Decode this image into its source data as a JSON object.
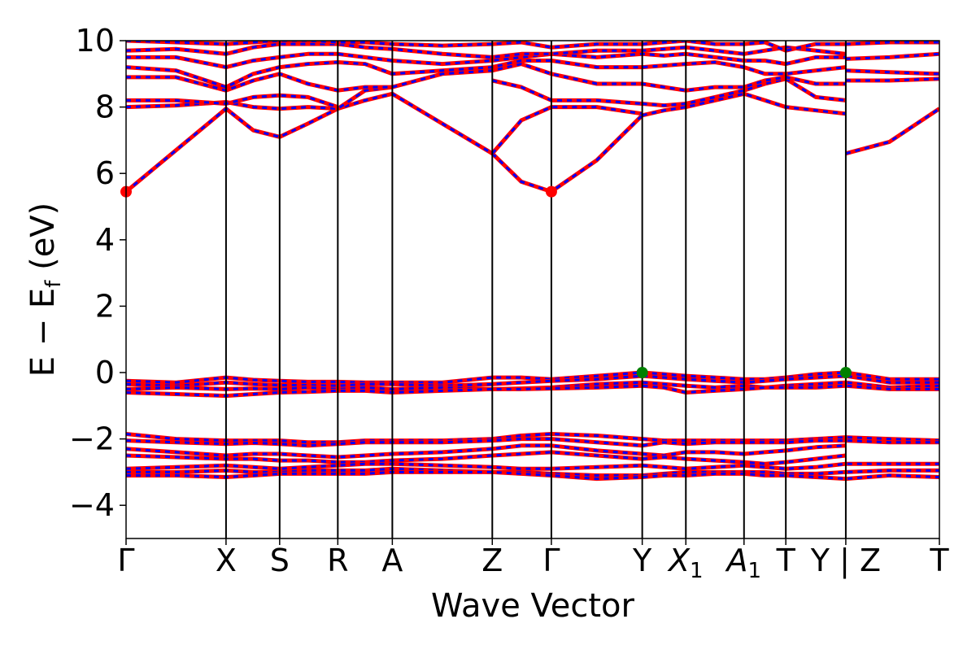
{
  "chart_data": {
    "type": "line",
    "title": "",
    "xlabel": "Wave Vector",
    "ylabel_main": "E − E",
    "ylabel_sub": "f",
    "ylabel_unit": " (eV)",
    "ylim": [
      -5,
      10
    ],
    "yticks": [
      -4,
      -2,
      0,
      2,
      4,
      6,
      8,
      10
    ],
    "ytick_labels": [
      "−4",
      "−2",
      "0",
      "2",
      "4",
      "6",
      "8",
      "10"
    ],
    "xlim": [
      0,
      8.095
    ],
    "kpoints": [
      {
        "x": 0.0,
        "label": "Γ",
        "sub": ""
      },
      {
        "x": 1.1,
        "label": "X",
        "sub": ""
      },
      {
        "x": 1.69,
        "label": "S",
        "sub": ""
      },
      {
        "x": 2.33,
        "label": "R",
        "sub": ""
      },
      {
        "x": 2.93,
        "label": "A",
        "sub": ""
      },
      {
        "x": 4.03,
        "label": "Z",
        "sub": ""
      },
      {
        "x": 4.68,
        "label": "Γ",
        "sub": ""
      },
      {
        "x": 5.68,
        "label": "Y",
        "sub": ""
      },
      {
        "x": 6.16,
        "label": "X",
        "sub": "1",
        "italic": true
      },
      {
        "x": 6.8,
        "label": "A",
        "sub": "1",
        "italic": true
      },
      {
        "x": 7.26,
        "label": "T",
        "sub": ""
      },
      {
        "x": 7.92,
        "label": "Y | Z",
        "sub": ""
      },
      {
        "x": 8.95,
        "label": "T",
        "sub": ""
      }
    ],
    "break_x": 7.92,
    "grid": false,
    "legend": "none",
    "colors": {
      "series_a": "#ff0000",
      "series_b": "#0000ff",
      "cbm": "#ff0000",
      "vbm": "#008000"
    },
    "markers": [
      {
        "name": "cbm-marker",
        "x": 0.0,
        "y": 5.45,
        "color": "#ff0000"
      },
      {
        "name": "cbm-marker",
        "x": 4.68,
        "y": 5.45,
        "color": "#ff0000"
      },
      {
        "name": "vbm-marker",
        "x": 5.68,
        "y": 0.0,
        "color": "#008000"
      },
      {
        "name": "vbm-marker",
        "x": 7.92,
        "y": 0.0,
        "color": "#008000"
      }
    ],
    "series": [
      {
        "x": [
          0,
          0.55,
          1.1,
          1.4,
          1.69,
          2.0,
          2.33,
          2.63,
          2.93,
          3.48,
          4.03
        ],
        "y": [
          5.45,
          6.7,
          7.95,
          7.3,
          7.1,
          7.5,
          7.95,
          8.2,
          8.4,
          7.5,
          6.6
        ]
      },
      {
        "x": [
          4.03,
          4.35,
          4.68,
          5.18,
          5.68
        ],
        "y": [
          6.6,
          5.75,
          5.45,
          6.4,
          7.75
        ]
      },
      {
        "x": [
          5.68,
          5.92,
          6.16,
          6.48,
          6.8,
          7.03,
          7.26,
          7.59,
          7.92
        ],
        "y": [
          7.75,
          7.9,
          8.0,
          8.2,
          8.4,
          8.2,
          8.0,
          7.9,
          7.8
        ]
      },
      {
        "x": [
          7.92,
          8.4,
          8.95
        ],
        "y": [
          6.6,
          6.95,
          7.95
        ]
      },
      {
        "x": [
          0,
          0.55,
          1.1,
          1.4,
          1.69,
          2.0,
          2.33,
          2.63,
          2.93
        ],
        "y": [
          8.0,
          8.05,
          8.15,
          8.0,
          7.95,
          8.0,
          7.95,
          8.5,
          8.6
        ]
      },
      {
        "x": [
          0,
          0.55,
          1.1,
          1.4,
          1.69,
          2.0,
          2.33
        ],
        "y": [
          8.2,
          8.2,
          8.1,
          8.3,
          8.35,
          8.3,
          8.0
        ]
      },
      {
        "x": [
          4.03,
          4.35,
          4.68,
          5.18,
          5.68
        ],
        "y": [
          6.6,
          7.6,
          8.0,
          8.0,
          7.8
        ]
      },
      {
        "x": [
          4.03,
          4.35,
          4.68,
          5.18,
          5.68
        ],
        "y": [
          8.8,
          8.6,
          8.2,
          8.2,
          8.1
        ]
      },
      {
        "x": [
          5.68,
          5.92,
          6.16,
          6.48,
          6.8,
          7.03,
          7.26,
          7.59,
          7.92
        ],
        "y": [
          8.1,
          8.05,
          8.1,
          8.3,
          8.5,
          8.7,
          8.85,
          8.3,
          8.2
        ]
      },
      {
        "x": [
          0,
          0.55,
          1.1,
          1.4,
          1.69,
          2.0,
          2.33,
          2.63,
          2.93,
          3.48,
          4.03,
          4.35,
          4.68,
          5.18,
          5.68,
          5.92,
          6.16,
          6.48,
          6.8,
          7.03,
          7.26,
          7.59,
          7.92
        ],
        "y": [
          8.9,
          8.9,
          8.5,
          8.8,
          9.0,
          8.7,
          8.5,
          8.6,
          8.6,
          9.0,
          9.1,
          9.3,
          9.0,
          8.7,
          8.7,
          8.6,
          8.5,
          8.6,
          8.6,
          8.8,
          8.9,
          8.7,
          8.7
        ]
      },
      {
        "x": [
          7.92,
          8.4,
          8.95
        ],
        "y": [
          8.8,
          8.8,
          8.85
        ]
      },
      {
        "x": [
          0,
          0.55,
          1.1,
          1.4,
          1.69,
          2.0,
          2.33,
          2.63,
          2.93,
          3.48,
          4.03,
          4.35,
          4.68,
          5.18,
          5.68,
          5.92,
          6.16,
          6.48,
          6.8,
          7.03,
          7.26,
          7.59,
          7.92
        ],
        "y": [
          9.2,
          9.1,
          8.6,
          9.0,
          9.2,
          9.3,
          9.35,
          9.3,
          9.0,
          9.1,
          9.2,
          9.4,
          9.4,
          9.2,
          9.2,
          9.25,
          9.3,
          9.35,
          9.2,
          9.0,
          9.0,
          9.1,
          9.2
        ]
      },
      {
        "x": [
          0,
          0.55,
          1.1,
          1.4,
          1.69,
          2.0,
          2.33,
          2.63,
          2.93,
          3.48,
          4.03,
          4.35,
          4.68,
          5.18,
          5.68,
          5.92,
          6.16,
          6.48,
          6.8,
          7.03,
          7.26,
          7.59,
          7.92
        ],
        "y": [
          9.5,
          9.5,
          9.2,
          9.4,
          9.5,
          9.6,
          9.6,
          9.5,
          9.4,
          9.3,
          9.4,
          9.5,
          9.6,
          9.5,
          9.6,
          9.55,
          9.6,
          9.5,
          9.4,
          9.4,
          9.3,
          9.5,
          9.5
        ]
      },
      {
        "x": [
          0,
          0.55,
          1.1,
          1.4,
          1.69,
          2.0,
          2.33,
          2.63,
          2.93,
          3.48,
          4.03,
          4.35,
          4.68,
          5.18,
          5.68,
          5.92,
          6.16,
          6.48,
          6.8,
          7.03,
          7.26,
          7.59,
          7.92
        ],
        "y": [
          9.7,
          9.75,
          9.6,
          9.8,
          9.9,
          9.9,
          9.9,
          9.8,
          9.75,
          9.6,
          9.5,
          9.6,
          9.6,
          9.7,
          9.7,
          9.75,
          9.8,
          9.7,
          9.6,
          9.7,
          9.8,
          9.7,
          9.6
        ]
      },
      {
        "x": [
          0,
          0.55,
          1.1,
          1.4,
          1.69,
          2.0,
          2.33,
          2.63,
          2.93,
          3.48,
          4.03,
          4.35,
          4.68,
          5.18,
          5.68,
          5.92,
          6.16,
          6.48,
          6.8,
          7.03,
          7.26,
          7.59,
          7.92
        ],
        "y": [
          10.0,
          9.95,
          9.9,
          9.95,
          10.0,
          10.0,
          9.95,
          9.95,
          9.9,
          9.85,
          9.9,
          9.95,
          9.8,
          9.9,
          9.9,
          9.95,
          10.0,
          9.9,
          9.9,
          9.95,
          9.7,
          9.9,
          9.9
        ]
      },
      {
        "x": [
          7.92,
          8.4,
          8.95
        ],
        "y": [
          9.1,
          9.05,
          9.0
        ]
      },
      {
        "x": [
          7.92,
          8.4,
          8.95
        ],
        "y": [
          9.45,
          9.5,
          9.6
        ]
      },
      {
        "x": [
          7.92,
          8.4,
          8.95
        ],
        "y": [
          9.9,
          9.95,
          9.95
        ]
      },
      {
        "x": [
          0,
          0.55,
          1.1,
          1.4,
          1.69,
          2.0,
          2.33,
          2.63,
          2.93,
          3.48,
          4.03,
          4.35,
          4.68,
          5.18,
          5.68,
          5.92,
          6.16,
          6.48,
          6.8,
          7.03,
          7.26,
          7.59,
          7.92,
          8.4,
          8.95
        ],
        "y": [
          -0.25,
          -0.3,
          -0.15,
          -0.22,
          -0.25,
          -0.28,
          -0.28,
          -0.3,
          -0.3,
          -0.3,
          -0.15,
          -0.15,
          -0.2,
          -0.1,
          0.0,
          -0.05,
          -0.1,
          -0.15,
          -0.2,
          -0.2,
          -0.15,
          -0.05,
          0.0,
          -0.2,
          -0.2
        ]
      },
      {
        "x": [
          0,
          0.55,
          1.1,
          1.4,
          1.69,
          2.0,
          2.33,
          2.63,
          2.93,
          3.48,
          4.03,
          4.35,
          4.68,
          5.18,
          5.68,
          5.92,
          6.16,
          6.48,
          6.8,
          7.03,
          7.26,
          7.59,
          7.92,
          8.4,
          8.95
        ],
        "y": [
          -0.35,
          -0.4,
          -0.3,
          -0.35,
          -0.38,
          -0.38,
          -0.4,
          -0.35,
          -0.35,
          -0.4,
          -0.35,
          -0.3,
          -0.25,
          -0.2,
          -0.1,
          -0.15,
          -0.2,
          -0.25,
          -0.3,
          -0.25,
          -0.2,
          -0.15,
          -0.1,
          -0.3,
          -0.3
        ]
      },
      {
        "x": [
          0,
          0.55,
          1.1,
          1.4,
          1.69,
          2.0,
          2.33,
          2.63,
          2.93,
          3.48,
          4.03,
          4.35,
          4.68,
          5.18,
          5.68,
          5.92,
          6.16,
          6.48,
          6.8,
          7.03,
          7.26,
          7.59,
          7.92,
          8.4,
          8.95
        ],
        "y": [
          -0.5,
          -0.45,
          -0.5,
          -0.48,
          -0.5,
          -0.45,
          -0.5,
          -0.45,
          -0.5,
          -0.45,
          -0.5,
          -0.48,
          -0.45,
          -0.35,
          -0.3,
          -0.35,
          -0.4,
          -0.45,
          -0.4,
          -0.45,
          -0.4,
          -0.35,
          -0.3,
          -0.45,
          -0.4
        ]
      },
      {
        "x": [
          0,
          0.55,
          1.1,
          1.4,
          1.69,
          2.0,
          2.33,
          2.63,
          2.93,
          3.48,
          4.03,
          4.35,
          4.68,
          5.18,
          5.68,
          5.92,
          6.16,
          6.48,
          6.8,
          7.03,
          7.26,
          7.59,
          7.92,
          8.4,
          8.95
        ],
        "y": [
          -0.6,
          -0.65,
          -0.7,
          -0.65,
          -0.6,
          -0.58,
          -0.55,
          -0.55,
          -0.6,
          -0.55,
          -0.5,
          -0.5,
          -0.48,
          -0.45,
          -0.4,
          -0.45,
          -0.6,
          -0.55,
          -0.5,
          -0.45,
          -0.45,
          -0.45,
          -0.4,
          -0.5,
          -0.5
        ]
      },
      {
        "x": [
          0,
          0.55,
          1.1,
          1.4,
          1.69,
          2.0,
          2.33,
          2.63,
          2.93,
          3.48,
          4.03,
          4.35,
          4.68,
          5.18,
          5.68,
          5.92,
          6.16,
          6.48,
          6.8,
          7.03,
          7.26,
          7.59,
          7.92,
          8.4,
          8.95
        ],
        "y": [
          -1.85,
          -2.0,
          -2.05,
          -2.05,
          -2.05,
          -2.1,
          -2.1,
          -2.05,
          -2.05,
          -2.05,
          -2.0,
          -1.9,
          -1.85,
          -1.9,
          -2.0,
          -2.05,
          -2.05,
          -2.05,
          -2.05,
          -2.05,
          -2.05,
          -2.0,
          -1.95,
          -2.0,
          -2.05
        ]
      },
      {
        "x": [
          0,
          0.55,
          1.1,
          1.4,
          1.69,
          2.0,
          2.33,
          2.63,
          2.93,
          3.48,
          4.03,
          4.35,
          4.68,
          5.18,
          5.68,
          5.92,
          6.16,
          6.48,
          6.8,
          7.03,
          7.26,
          7.59,
          7.92,
          8.4,
          8.95
        ],
        "y": [
          -2.05,
          -2.1,
          -2.15,
          -2.12,
          -2.15,
          -2.2,
          -2.15,
          -2.1,
          -2.1,
          -2.1,
          -2.05,
          -2.0,
          -2.0,
          -2.1,
          -2.2,
          -2.1,
          -2.15,
          -2.1,
          -2.1,
          -2.1,
          -2.1,
          -2.05,
          -2.05,
          -2.1,
          -2.1
        ]
      },
      {
        "x": [
          0,
          0.55,
          1.1,
          1.4,
          1.69,
          2.0,
          2.33,
          2.63,
          2.93,
          3.48,
          4.03,
          4.35,
          4.68,
          5.18,
          5.68,
          5.92,
          6.16,
          6.48,
          6.8,
          7.03,
          7.26,
          7.59,
          7.92
        ],
        "y": [
          -2.3,
          -2.4,
          -2.5,
          -2.45,
          -2.45,
          -2.5,
          -2.55,
          -2.5,
          -2.45,
          -2.4,
          -2.3,
          -2.2,
          -2.2,
          -2.35,
          -2.45,
          -2.5,
          -2.4,
          -2.4,
          -2.45,
          -2.4,
          -2.35,
          -2.25,
          -2.2
        ]
      },
      {
        "x": [
          0,
          0.55,
          1.1,
          1.4,
          1.69,
          2.0,
          2.33,
          2.63,
          2.93,
          3.48,
          4.03,
          4.35,
          4.68,
          5.18,
          5.68,
          5.92,
          6.16,
          6.48,
          6.8,
          7.03,
          7.26,
          7.59,
          7.92
        ],
        "y": [
          -2.5,
          -2.55,
          -2.6,
          -2.6,
          -2.65,
          -2.65,
          -2.7,
          -2.7,
          -2.65,
          -2.6,
          -2.5,
          -2.45,
          -2.4,
          -2.5,
          -2.6,
          -2.55,
          -2.6,
          -2.65,
          -2.7,
          -2.75,
          -2.7,
          -2.6,
          -2.5
        ]
      },
      {
        "x": [
          0,
          0.55,
          1.1,
          1.4,
          1.69,
          2.0,
          2.33,
          2.63,
          2.93,
          3.48,
          4.03,
          4.35,
          4.68,
          5.18,
          5.68,
          5.92,
          6.16,
          6.48,
          6.8,
          7.03,
          7.26,
          7.59,
          7.92,
          8.4,
          8.95
        ],
        "y": [
          -2.9,
          -2.85,
          -2.8,
          -2.85,
          -2.9,
          -2.85,
          -2.8,
          -2.75,
          -2.75,
          -2.8,
          -2.85,
          -2.9,
          -2.9,
          -2.85,
          -2.8,
          -2.85,
          -2.9,
          -2.85,
          -2.8,
          -2.85,
          -2.9,
          -2.85,
          -2.75,
          -2.75,
          -2.75
        ]
      },
      {
        "x": [
          0,
          0.55,
          1.1,
          1.4,
          1.69,
          2.0,
          2.33,
          2.63,
          2.93,
          3.48,
          4.03,
          4.35,
          4.68,
          5.18,
          5.68,
          5.92,
          6.16,
          6.48,
          6.8,
          7.03,
          7.26,
          7.59,
          7.92,
          8.4,
          8.95
        ],
        "y": [
          -3.0,
          -3.0,
          -2.95,
          -3.0,
          -3.0,
          -2.95,
          -2.95,
          -2.95,
          -2.9,
          -2.95,
          -3.0,
          -3.0,
          -3.05,
          -3.1,
          -3.1,
          -3.05,
          -3.0,
          -3.0,
          -3.0,
          -3.0,
          -3.05,
          -3.05,
          -3.0,
          -2.95,
          -2.95
        ]
      },
      {
        "x": [
          0,
          0.55,
          1.1,
          1.4,
          1.69,
          2.0,
          2.33,
          2.63,
          2.93,
          3.48,
          4.03,
          4.35,
          4.68,
          5.18,
          5.68,
          5.92,
          6.16,
          6.48,
          6.8,
          7.03,
          7.26,
          7.59,
          7.92,
          8.4,
          8.95
        ],
        "y": [
          -3.1,
          -3.1,
          -3.15,
          -3.1,
          -3.05,
          -3.05,
          -3.05,
          -3.05,
          -3.0,
          -3.0,
          -3.0,
          -3.05,
          -3.1,
          -3.2,
          -3.15,
          -3.1,
          -3.1,
          -3.05,
          -3.05,
          -3.1,
          -3.1,
          -3.15,
          -3.2,
          -3.1,
          -3.15
        ]
      }
    ]
  }
}
